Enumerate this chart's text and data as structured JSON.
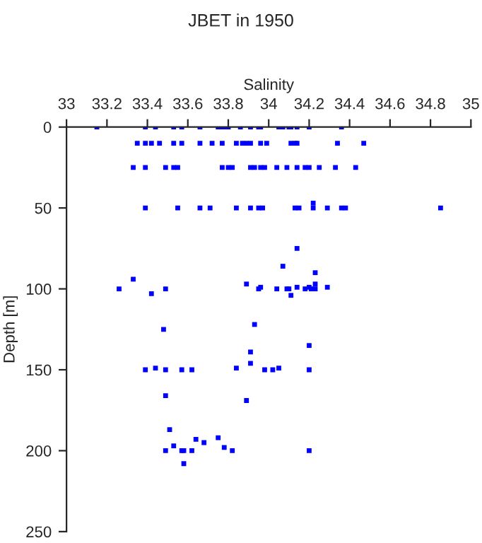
{
  "chart_data": {
    "type": "scatter",
    "title": "JBET in 1950",
    "xlabel": "Salinity",
    "ylabel": "Depth [m]",
    "xlim": [
      33,
      35
    ],
    "xticks": [
      33,
      33.2,
      33.4,
      33.6,
      33.8,
      34,
      34.2,
      34.4,
      34.6,
      34.8,
      35
    ],
    "ylim": [
      250,
      0
    ],
    "yticks": [
      0,
      50,
      100,
      150,
      200,
      250
    ],
    "marker": "square",
    "grid": false,
    "series": [
      {
        "color": "#0000ff",
        "x": [
          33.15,
          33.39,
          33.44,
          33.53,
          33.57,
          33.66,
          33.75,
          33.77,
          33.79,
          33.8,
          33.86,
          33.91,
          33.95,
          33.96,
          34.05,
          34.07,
          34.1,
          34.11,
          34.14,
          34.2,
          34.36,
          33.35,
          33.39,
          33.42,
          33.46,
          33.53,
          33.57,
          33.66,
          33.72,
          33.77,
          33.84,
          33.87,
          33.89,
          33.91,
          33.96,
          33.99,
          34.11,
          34.13,
          34.14,
          34.34,
          34.47,
          33.33,
          33.39,
          33.49,
          33.53,
          33.55,
          33.77,
          33.8,
          33.82,
          33.91,
          33.93,
          33.96,
          33.98,
          34.04,
          34.09,
          34.14,
          34.18,
          34.2,
          34.25,
          34.33,
          34.43,
          33.39,
          33.55,
          33.66,
          33.71,
          33.84,
          33.91,
          33.95,
          33.97,
          34.13,
          34.15,
          34.22,
          34.22,
          34.29,
          34.36,
          34.38,
          34.85,
          34.14,
          34.07,
          34.23,
          33.26,
          33.33,
          33.42,
          33.49,
          33.89,
          33.95,
          33.96,
          34.04,
          34.09,
          34.1,
          34.11,
          34.14,
          34.18,
          34.2,
          34.21,
          34.23,
          34.23,
          34.29,
          33.48,
          33.93,
          33.91,
          34.2,
          33.39,
          33.44,
          33.49,
          33.57,
          33.62,
          33.84,
          33.91,
          33.98,
          34.02,
          34.05,
          34.2,
          33.49,
          33.89,
          33.51,
          33.53,
          33.49,
          33.57,
          33.58,
          33.62,
          33.64,
          33.68,
          33.75,
          33.78,
          33.82,
          34.2,
          33.58
        ],
        "values": [
          0,
          0,
          0,
          0,
          0,
          0,
          0,
          0,
          0,
          0,
          0,
          0,
          0,
          0,
          0,
          0,
          0,
          0,
          0,
          0,
          0,
          10,
          10,
          10,
          10,
          10,
          10,
          10,
          10,
          10,
          10,
          10,
          10,
          10,
          10,
          10,
          10,
          10,
          10,
          10,
          10,
          25,
          25,
          25,
          25,
          25,
          25,
          25,
          25,
          25,
          25,
          25,
          25,
          25,
          25,
          25,
          25,
          25,
          25,
          25,
          25,
          50,
          50,
          50,
          50,
          50,
          50,
          50,
          50,
          50,
          50,
          50,
          47,
          50,
          50,
          50,
          50,
          75,
          86,
          90,
          100,
          94,
          103,
          100,
          97,
          100,
          99,
          100,
          100,
          100,
          104,
          99,
          100,
          99,
          100,
          100,
          97,
          99,
          125,
          122,
          139,
          135,
          150,
          149,
          150,
          150,
          150,
          149,
          146,
          150,
          150,
          149,
          150,
          166,
          169,
          187,
          197,
          200,
          200,
          200,
          200,
          193,
          195,
          192,
          198,
          200,
          200,
          208
        ]
      }
    ]
  }
}
